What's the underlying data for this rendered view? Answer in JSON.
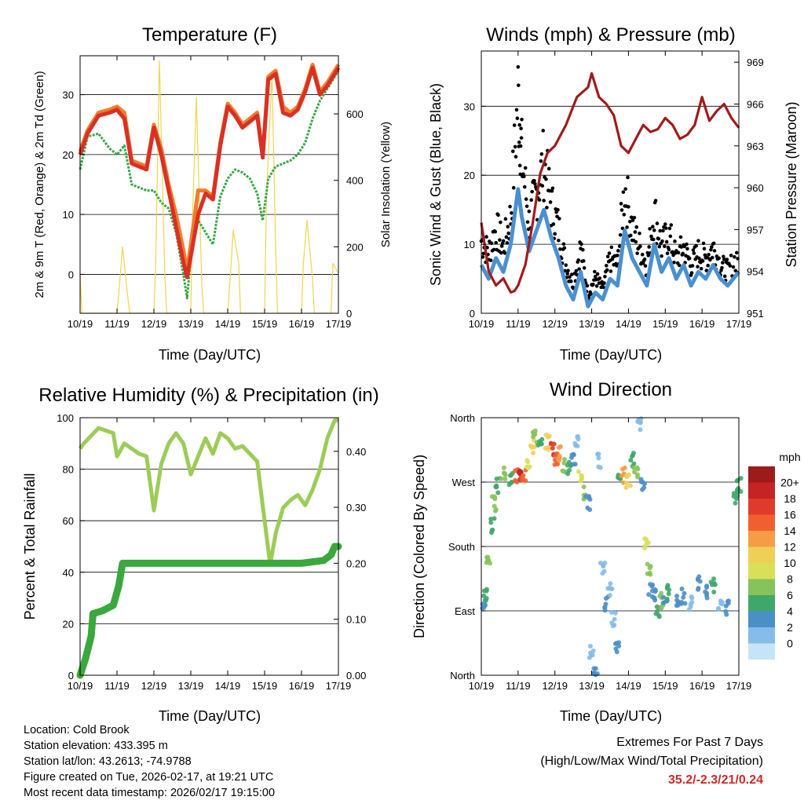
{
  "chart_data": [
    {
      "type": "line",
      "title": "Temperature (F)",
      "xlabel": "Time (Day/UTC)",
      "ylabel": "2m & 9m T (Red, Orange) & 2m Td (Green)",
      "y2label": "Solar Insolation (Yellow)",
      "x_ticks": [
        "10/19",
        "11/19",
        "12/19",
        "13/19",
        "14/19",
        "15/19",
        "16/19",
        "17/19"
      ],
      "ylim": [
        -6.5,
        36.5
      ],
      "y_ticks": [
        0,
        10,
        20,
        30
      ],
      "y2lim": [
        0,
        775
      ],
      "y2_ticks": [
        0,
        200,
        400,
        600
      ],
      "grid": "horizontal",
      "series": [
        {
          "name": "9m T",
          "color": "#f07d2a",
          "axis": "left",
          "x": [
            0,
            0.2,
            0.5,
            0.8,
            1.0,
            1.2,
            1.4,
            1.6,
            1.8,
            2.0,
            2.2,
            2.4,
            2.6,
            2.8,
            2.9,
            3.0,
            3.2,
            3.4,
            3.6,
            3.8,
            4.0,
            4.2,
            4.4,
            4.6,
            4.8,
            4.95,
            5.1,
            5.3,
            5.5,
            5.7,
            5.9,
            6.1,
            6.3,
            6.5,
            6.7,
            7.0
          ],
          "y": [
            20.5,
            24,
            27,
            27.5,
            28,
            27,
            19,
            18.5,
            18,
            25,
            21,
            15,
            10,
            4,
            0.5,
            5,
            14,
            14,
            13,
            22,
            28.5,
            27,
            25,
            26,
            27,
            20,
            33,
            34,
            28,
            27,
            28,
            31,
            35,
            30.5,
            32,
            35
          ]
        },
        {
          "name": "2m T",
          "color": "#d93025",
          "axis": "left",
          "x": [
            0,
            0.2,
            0.5,
            0.8,
            1.0,
            1.2,
            1.4,
            1.6,
            1.8,
            2.0,
            2.2,
            2.4,
            2.6,
            2.8,
            2.9,
            3.0,
            3.2,
            3.4,
            3.6,
            3.8,
            4.0,
            4.2,
            4.4,
            4.6,
            4.8,
            4.95,
            5.1,
            5.3,
            5.5,
            5.7,
            5.9,
            6.1,
            6.3,
            6.5,
            6.7,
            7.0
          ],
          "y": [
            20,
            23.5,
            26.5,
            27,
            27.5,
            26,
            18.5,
            18,
            17.5,
            24.5,
            20,
            14,
            8,
            2,
            -0.5,
            3,
            10,
            13.5,
            12.5,
            21.5,
            28,
            26.5,
            24.5,
            25.5,
            26.5,
            19.5,
            32.5,
            33.5,
            27,
            26.5,
            27.5,
            30.5,
            34.5,
            30,
            31.5,
            34.5
          ]
        },
        {
          "name": "2m Td",
          "color": "#3aa847",
          "axis": "left",
          "x": [
            0,
            0.2,
            0.5,
            0.8,
            1.0,
            1.2,
            1.4,
            1.6,
            1.8,
            2.0,
            2.2,
            2.4,
            2.6,
            2.8,
            2.9,
            3.0,
            3.2,
            3.4,
            3.6,
            3.8,
            4.0,
            4.2,
            4.4,
            4.6,
            4.8,
            4.95,
            5.1,
            5.3,
            5.5,
            5.7,
            5.9,
            6.1,
            6.3,
            6.5,
            6.7,
            7.0
          ],
          "y": [
            17.5,
            23,
            23.5,
            21,
            20,
            21.5,
            15,
            14.5,
            14,
            14,
            12,
            11,
            7,
            0,
            -4,
            3,
            9,
            7,
            5,
            13,
            16,
            17.5,
            17,
            16,
            13.5,
            9,
            16,
            18,
            18.5,
            19,
            20,
            22,
            26,
            29,
            31,
            34
          ]
        },
        {
          "name": "Solar Insolation",
          "color": "#f2d44c",
          "axis": "right",
          "x": [
            0,
            0.05,
            1.0,
            1.05,
            1.15,
            1.3,
            1.35,
            2.0,
            2.05,
            2.15,
            2.3,
            2.35,
            3.0,
            3.05,
            3.15,
            3.3,
            3.35,
            4.0,
            4.05,
            4.15,
            4.3,
            4.35,
            5.0,
            5.05,
            5.2,
            5.3,
            5.35,
            6.0,
            6.05,
            6.15,
            6.3,
            6.35,
            6.8,
            6.85,
            7.0
          ],
          "y": [
            120,
            0,
            0,
            60,
            200,
            40,
            0,
            0,
            150,
            760,
            100,
            0,
            0,
            300,
            650,
            80,
            0,
            0,
            80,
            250,
            150,
            0,
            0,
            350,
            720,
            200,
            0,
            0,
            150,
            280,
            100,
            0,
            0,
            150,
            120
          ]
        }
      ]
    },
    {
      "type": "scatter",
      "title": "Winds (mph) & Pressure (mb)",
      "xlabel": "Time (Day/UTC)",
      "ylabel": "Sonic Wind & Gust (Blue, Black)",
      "y2label": "Station Pressure (Maroon)",
      "x_ticks": [
        "10/19",
        "11/19",
        "12/19",
        "13/19",
        "14/19",
        "15/19",
        "16/19",
        "17/19"
      ],
      "ylim": [
        0,
        38
      ],
      "y_ticks": [
        0,
        10,
        20,
        30
      ],
      "y2lim": [
        951,
        969.8
      ],
      "y2_ticks": [
        951,
        954,
        957,
        960,
        963,
        966,
        969
      ],
      "grid": "horizontal",
      "series": [
        {
          "name": "Sonic Wind",
          "color": "#4a90d0",
          "marker": "dense line",
          "x": [
            0,
            0.2,
            0.4,
            0.6,
            0.8,
            1.0,
            1.1,
            1.3,
            1.5,
            1.7,
            1.9,
            2.1,
            2.3,
            2.5,
            2.7,
            2.9,
            3.1,
            3.3,
            3.5,
            3.7,
            3.9,
            4.1,
            4.3,
            4.5,
            4.7,
            4.9,
            5.1,
            5.3,
            5.5,
            5.7,
            5.9,
            6.1,
            6.3,
            6.5,
            6.7,
            7.0
          ],
          "y": [
            7,
            5,
            8,
            6,
            10,
            18,
            14,
            9,
            12,
            15,
            11,
            8,
            4,
            2,
            6,
            1,
            3,
            2,
            5,
            4,
            12,
            8,
            6,
            4,
            10,
            6,
            8,
            5,
            7,
            4,
            6,
            5,
            7,
            5,
            4,
            6
          ]
        },
        {
          "name": "Gust",
          "color": "#000000",
          "marker": "dots",
          "x": [
            0,
            0.2,
            0.4,
            0.6,
            0.8,
            1.0,
            1.1,
            1.3,
            1.5,
            1.7,
            1.9,
            2.1,
            2.3,
            2.5,
            2.7,
            2.9,
            3.1,
            3.3,
            3.5,
            3.7,
            3.9,
            4.1,
            4.3,
            4.5,
            4.7,
            4.9,
            5.1,
            5.3,
            5.5,
            5.7,
            5.9,
            6.1,
            6.3,
            6.5,
            6.7,
            7.0
          ],
          "y": [
            12,
            10,
            14,
            11,
            16,
            36,
            26,
            15,
            20,
            25,
            18,
            14,
            8,
            5,
            11,
            3,
            6,
            4,
            9,
            8,
            21,
            14,
            11,
            8,
            17,
            11,
            13,
            9,
            11,
            8,
            10,
            9,
            11,
            8,
            7,
            10
          ]
        },
        {
          "name": "Station Pressure",
          "color": "#a01c1c",
          "axis": "right",
          "x": [
            0,
            0.2,
            0.4,
            0.6,
            0.8,
            0.9,
            1.0,
            1.2,
            1.4,
            1.6,
            1.8,
            2.0,
            2.3,
            2.6,
            2.9,
            3.0,
            3.2,
            3.4,
            3.6,
            3.8,
            4.0,
            4.2,
            4.4,
            4.6,
            4.8,
            5.0,
            5.2,
            5.4,
            5.6,
            5.8,
            6.0,
            6.2,
            6.4,
            6.6,
            6.8,
            7.0
          ],
          "y": [
            957.5,
            954,
            953,
            953.5,
            952.5,
            952.6,
            953,
            954.5,
            957.5,
            961,
            962.5,
            963,
            964.5,
            966.5,
            967.2,
            968.2,
            966.5,
            966,
            965.2,
            963,
            962.5,
            963.5,
            964.5,
            964,
            964.2,
            965,
            964.5,
            963.5,
            963.8,
            964.5,
            966.5,
            964.8,
            965.5,
            966,
            965,
            964.3
          ]
        }
      ]
    },
    {
      "type": "line",
      "title": "Relative Humidity (%) & Precipitation (in)",
      "xlabel": "Time (Day/UTC)",
      "ylabel": "Percent & Total Rainfall",
      "x_ticks": [
        "10/19",
        "11/19",
        "12/19",
        "13/19",
        "14/19",
        "15/19",
        "16/19",
        "17/19"
      ],
      "ylim": [
        0,
        100
      ],
      "y_ticks": [
        0,
        20,
        40,
        60,
        80,
        100
      ],
      "y2lim": [
        0,
        0.46
      ],
      "y2_ticks": [
        "0.00",
        "0.10",
        "0.20",
        "0.30",
        "0.40"
      ],
      "grid": "horizontal",
      "series": [
        {
          "name": "Relative Humidity",
          "color": "#9ccc58",
          "axis": "left",
          "x": [
            0,
            0.1,
            0.3,
            0.5,
            0.7,
            0.9,
            1.0,
            1.2,
            1.4,
            1.6,
            1.8,
            2.0,
            2.2,
            2.4,
            2.6,
            2.8,
            3.0,
            3.2,
            3.4,
            3.6,
            3.8,
            4.0,
            4.2,
            4.4,
            4.6,
            4.8,
            5.0,
            5.15,
            5.3,
            5.5,
            5.7,
            5.9,
            6.1,
            6.3,
            6.5,
            6.7,
            6.9,
            7.0
          ],
          "y": [
            88,
            90,
            93,
            96,
            95,
            94,
            85,
            90,
            88,
            86,
            85,
            64,
            82,
            90,
            94,
            90,
            78,
            85,
            92,
            86,
            94,
            92,
            88,
            89,
            86,
            83,
            60,
            43,
            55,
            65,
            68,
            70,
            66,
            72,
            80,
            92,
            99,
            99
          ]
        },
        {
          "name": "Total Precipitation",
          "color": "#3aa83c",
          "axis": "right",
          "x": [
            0,
            0.15,
            0.3,
            0.35,
            0.6,
            0.9,
            1.05,
            1.15,
            1.5,
            2.0,
            3.0,
            4.0,
            5.0,
            6.0,
            6.6,
            6.8,
            6.9,
            7.0
          ],
          "y": [
            0.0,
            0.03,
            0.07,
            0.11,
            0.115,
            0.125,
            0.16,
            0.2,
            0.2,
            0.2,
            0.2,
            0.2,
            0.2,
            0.2,
            0.205,
            0.215,
            0.23,
            0.23
          ]
        }
      ]
    },
    {
      "type": "scatter",
      "title": "Wind Direction",
      "xlabel": "Time (Day/UTC)",
      "ylabel": "Direction (Colored By Speed)",
      "x_ticks": [
        "10/19",
        "11/19",
        "12/19",
        "13/19",
        "14/19",
        "15/19",
        "16/19",
        "17/19"
      ],
      "y_ticks": [
        "North",
        "East",
        "South",
        "West",
        "North"
      ],
      "ylim": [
        0,
        360
      ],
      "grid": "horizontal",
      "colorbar": {
        "title": "mph",
        "labels": [
          "20+",
          "18",
          "16",
          "14",
          "12",
          "10",
          "8",
          "6",
          "4",
          "2",
          "0"
        ],
        "colors": [
          "#9c1c1c",
          "#c42424",
          "#df3b2b",
          "#f0602e",
          "#f59c45",
          "#f0cf55",
          "#d8e05a",
          "#86c35a",
          "#3fa769",
          "#4b8fc9",
          "#85bde8",
          "#c5e4f7"
        ]
      },
      "points": [
        [
          0.05,
          100,
          4
        ],
        [
          0.1,
          115,
          6
        ],
        [
          0.2,
          160,
          8
        ],
        [
          0.3,
          210,
          6
        ],
        [
          0.35,
          240,
          8
        ],
        [
          0.45,
          265,
          6
        ],
        [
          0.6,
          280,
          8
        ],
        [
          0.8,
          275,
          6
        ],
        [
          0.95,
          278,
          16
        ],
        [
          1.05,
          280,
          20
        ],
        [
          1.15,
          282,
          16
        ],
        [
          1.3,
          300,
          10
        ],
        [
          1.4,
          320,
          12
        ],
        [
          1.45,
          335,
          8
        ],
        [
          1.6,
          320,
          6
        ],
        [
          1.8,
          325,
          12
        ],
        [
          1.95,
          318,
          18
        ],
        [
          2.05,
          300,
          16
        ],
        [
          2.15,
          310,
          14
        ],
        [
          2.25,
          295,
          8
        ],
        [
          2.4,
          290,
          6
        ],
        [
          2.5,
          300,
          4
        ],
        [
          2.6,
          330,
          2
        ],
        [
          2.7,
          280,
          10
        ],
        [
          2.8,
          255,
          8
        ],
        [
          2.9,
          240,
          4
        ],
        [
          3.0,
          30,
          2
        ],
        [
          3.1,
          10,
          4
        ],
        [
          3.2,
          300,
          2
        ],
        [
          3.3,
          150,
          2
        ],
        [
          3.4,
          100,
          4
        ],
        [
          3.5,
          120,
          2
        ],
        [
          3.6,
          80,
          2
        ],
        [
          3.7,
          40,
          4
        ],
        [
          3.75,
          270,
          6
        ],
        [
          3.85,
          280,
          14
        ],
        [
          4.0,
          270,
          12
        ],
        [
          4.1,
          300,
          6
        ],
        [
          4.2,
          280,
          8
        ],
        [
          4.3,
          350,
          2
        ],
        [
          4.4,
          270,
          4
        ],
        [
          4.5,
          180,
          10
        ],
        [
          4.55,
          150,
          8
        ],
        [
          4.6,
          120,
          4
        ],
        [
          4.7,
          115,
          4
        ],
        [
          4.8,
          90,
          6
        ],
        [
          4.9,
          105,
          8
        ],
        [
          5.0,
          110,
          4
        ],
        [
          5.1,
          115,
          6
        ],
        [
          5.3,
          105,
          4
        ],
        [
          5.5,
          110,
          4
        ],
        [
          5.7,
          100,
          2
        ],
        [
          5.9,
          130,
          4
        ],
        [
          6.1,
          115,
          4
        ],
        [
          6.3,
          125,
          6
        ],
        [
          6.5,
          100,
          2
        ],
        [
          6.7,
          95,
          4
        ],
        [
          6.9,
          250,
          6
        ],
        [
          7.0,
          265,
          6
        ]
      ]
    }
  ],
  "info": {
    "location": "Location: Cold Brook",
    "elevation": "Station elevation: 433.395 m",
    "latlon": "Station lat/lon: 43.2613; -74.9788",
    "created": "Figure created on Tue, 2026-02-17, at 19:21 UTC",
    "recent": "Most recent data timestamp: 2026/02/17 19:15:00"
  },
  "extremes": {
    "title": "Extremes For Past 7 Days",
    "subtitle": "(High/Low/Max Wind/Total Precipitation)",
    "values": "35.2/-2.3/21/0.24"
  }
}
